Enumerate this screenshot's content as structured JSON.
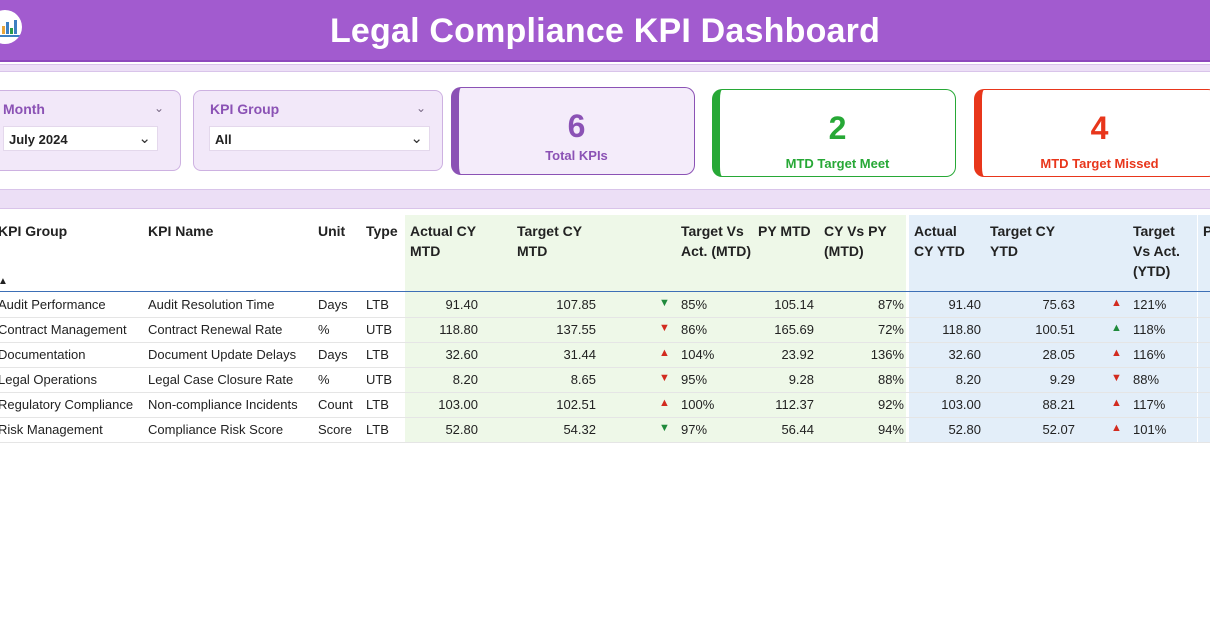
{
  "header": {
    "title": "Legal Compliance KPI Dashboard"
  },
  "slicers": {
    "month": {
      "label": "Month",
      "value": "July 2024"
    },
    "kpi_group": {
      "label": "KPI Group",
      "value": "All"
    }
  },
  "cards": {
    "total": {
      "value": "6",
      "label": "Total KPIs"
    },
    "met": {
      "value": "2",
      "label": "MTD Target Meet"
    },
    "missed": {
      "value": "4",
      "label": "MTD Target Missed"
    }
  },
  "table": {
    "headers": {
      "kpi_group": "KPI Group",
      "kpi_name": "KPI Name",
      "unit": "Unit",
      "type": "Type",
      "actual_cy_mtd": "Actual CY MTD",
      "target_cy_mtd": "Target CY MTD",
      "target_vs_act_mtd": "Target Vs Act. (MTD)",
      "py_mtd": "PY MTD",
      "cy_vs_py_mtd": "CY Vs PY (MTD)",
      "actual_cy_ytd": "Actual CY YTD",
      "target_cy_ytd": "Target CY YTD",
      "target_vs_act_ytd": "Target Vs Act. (YTD)",
      "next_cut": "P"
    },
    "rows": [
      {
        "group": "Audit Performance",
        "name": "Audit Resolution Time",
        "unit": "Days",
        "type": "LTB",
        "actual_mtd": "91.40",
        "target_mtd": "107.85",
        "mtd_icon": "down-green",
        "tva_mtd": "85%",
        "py_mtd": "105.14",
        "cy_vs_py": "87%",
        "actual_ytd": "91.40",
        "target_ytd": "75.63",
        "ytd_icon": "up-red",
        "tva_ytd": "121%"
      },
      {
        "group": "Contract Management",
        "name": "Contract Renewal Rate",
        "unit": "%",
        "type": "UTB",
        "actual_mtd": "118.80",
        "target_mtd": "137.55",
        "mtd_icon": "down-red",
        "tva_mtd": "86%",
        "py_mtd": "165.69",
        "cy_vs_py": "72%",
        "actual_ytd": "118.80",
        "target_ytd": "100.51",
        "ytd_icon": "up-green",
        "tva_ytd": "118%"
      },
      {
        "group": "Documentation",
        "name": "Document Update Delays",
        "unit": "Days",
        "type": "LTB",
        "actual_mtd": "32.60",
        "target_mtd": "31.44",
        "mtd_icon": "up-red",
        "tva_mtd": "104%",
        "py_mtd": "23.92",
        "cy_vs_py": "136%",
        "actual_ytd": "32.60",
        "target_ytd": "28.05",
        "ytd_icon": "up-red",
        "tva_ytd": "116%"
      },
      {
        "group": "Legal Operations",
        "name": "Legal Case Closure Rate",
        "unit": "%",
        "type": "UTB",
        "actual_mtd": "8.20",
        "target_mtd": "8.65",
        "mtd_icon": "down-red",
        "tva_mtd": "95%",
        "py_mtd": "9.28",
        "cy_vs_py": "88%",
        "actual_ytd": "8.20",
        "target_ytd": "9.29",
        "ytd_icon": "down-red",
        "tva_ytd": "88%"
      },
      {
        "group": "Regulatory Compliance",
        "name": "Non-compliance Incidents",
        "unit": "Count",
        "type": "LTB",
        "actual_mtd": "103.00",
        "target_mtd": "102.51",
        "mtd_icon": "up-red",
        "tva_mtd": "100%",
        "py_mtd": "112.37",
        "cy_vs_py": "92%",
        "actual_ytd": "103.00",
        "target_ytd": "88.21",
        "ytd_icon": "up-red",
        "tva_ytd": "117%"
      },
      {
        "group": "Risk Management",
        "name": "Compliance Risk Score",
        "unit": "Score",
        "type": "LTB",
        "actual_mtd": "52.80",
        "target_mtd": "54.32",
        "mtd_icon": "down-green",
        "tva_mtd": "97%",
        "py_mtd": "56.44",
        "cy_vs_py": "94%",
        "actual_ytd": "52.80",
        "target_ytd": "52.07",
        "ytd_icon": "up-red",
        "tva_ytd": "101%"
      }
    ]
  },
  "colors": {
    "header_bg": "#a25bcf",
    "total_accent": "#8b52b5",
    "met_accent": "#27a836",
    "missed_accent": "#e8361b",
    "mtd_column_bg": "#eef8e8",
    "ytd_column_bg": "#e3eef9"
  }
}
